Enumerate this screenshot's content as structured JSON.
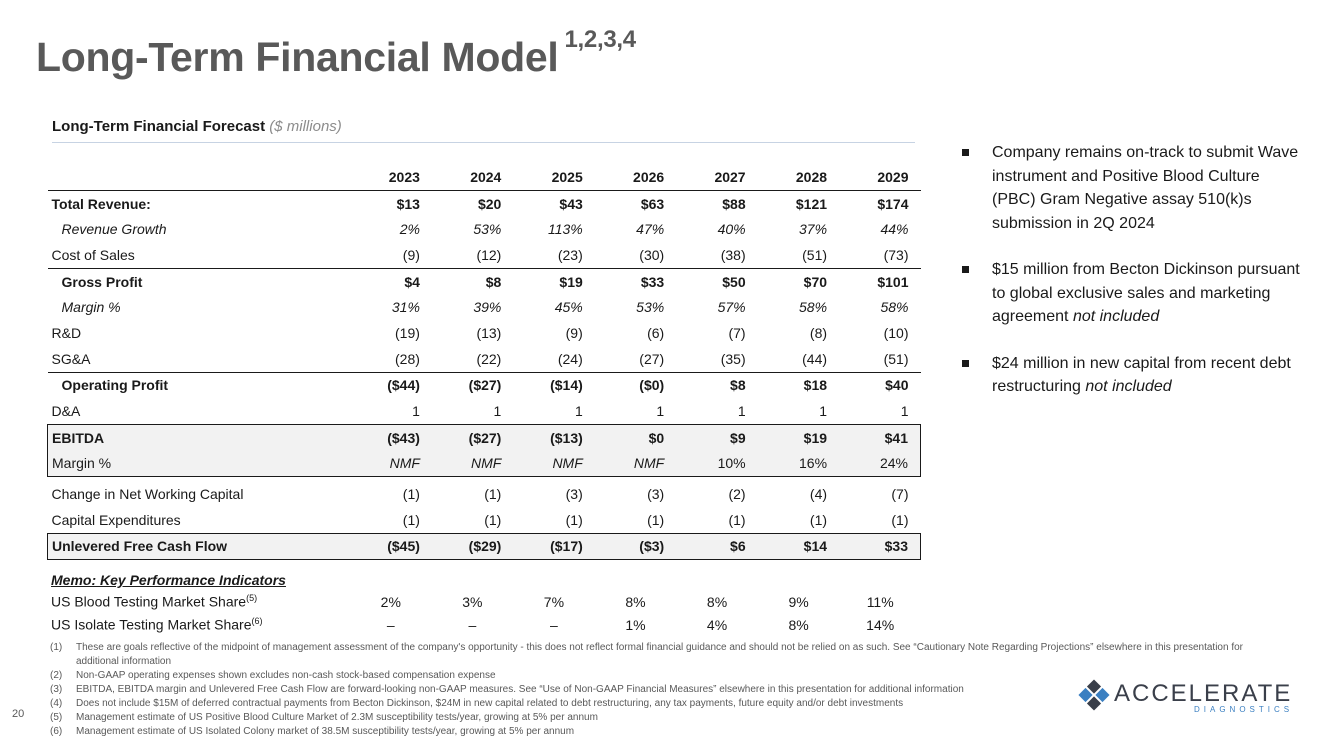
{
  "title": {
    "text": "Long-Term Financial Model",
    "superscript": "1,2,3,4"
  },
  "forecast": {
    "title": "Long-Term Financial Forecast",
    "unit": "($ millions)"
  },
  "years": [
    "2023",
    "2024",
    "2025",
    "2026",
    "2027",
    "2028",
    "2029"
  ],
  "rows": {
    "total_revenue": {
      "label": "Total Revenue:",
      "values": [
        "$13",
        "$20",
        "$43",
        "$63",
        "$88",
        "$121",
        "$174"
      ]
    },
    "revenue_growth": {
      "label": "Revenue Growth",
      "values": [
        "2%",
        "53%",
        "113%",
        "47%",
        "40%",
        "37%",
        "44%"
      ]
    },
    "cost_of_sales": {
      "label": "Cost of Sales",
      "values": [
        "(9)",
        "(12)",
        "(23)",
        "(30)",
        "(38)",
        "(51)",
        "(73)"
      ]
    },
    "gross_profit": {
      "label": "Gross Profit",
      "values": [
        "$4",
        "$8",
        "$19",
        "$33",
        "$50",
        "$70",
        "$101"
      ]
    },
    "gross_margin": {
      "label": "Margin %",
      "values": [
        "31%",
        "39%",
        "45%",
        "53%",
        "57%",
        "58%",
        "58%"
      ]
    },
    "rnd": {
      "label": "R&D",
      "values": [
        "(19)",
        "(13)",
        "(9)",
        "(6)",
        "(7)",
        "(8)",
        "(10)"
      ]
    },
    "sga": {
      "label": "SG&A",
      "values": [
        "(28)",
        "(22)",
        "(24)",
        "(27)",
        "(35)",
        "(44)",
        "(51)"
      ]
    },
    "operating_profit": {
      "label": "Operating Profit",
      "values": [
        "($44)",
        "($27)",
        "($14)",
        "($0)",
        "$8",
        "$18",
        "$40"
      ]
    },
    "da": {
      "label": "D&A",
      "values": [
        "1",
        "1",
        "1",
        "1",
        "1",
        "1",
        "1"
      ]
    },
    "ebitda": {
      "label": "EBITDA",
      "values": [
        "($43)",
        "($27)",
        "($13)",
        "$0",
        "$9",
        "$19",
        "$41"
      ]
    },
    "ebitda_margin": {
      "label": "Margin %",
      "values": [
        "NMF",
        "NMF",
        "NMF",
        "NMF",
        "10%",
        "16%",
        "24%"
      ]
    },
    "nwc": {
      "label": "Change in Net Working Capital",
      "values": [
        "(1)",
        "(1)",
        "(3)",
        "(3)",
        "(2)",
        "(4)",
        "(7)"
      ]
    },
    "capex": {
      "label": "Capital Expenditures",
      "values": [
        "(1)",
        "(1)",
        "(1)",
        "(1)",
        "(1)",
        "(1)",
        "(1)"
      ]
    },
    "ufcf": {
      "label": "Unlevered Free Cash Flow",
      "values": [
        "($45)",
        "($29)",
        "($17)",
        "($3)",
        "$6",
        "$14",
        "$33"
      ]
    }
  },
  "memo": {
    "title": "Memo: Key Performance Indicators",
    "rows": [
      {
        "label": "US Blood Testing Market Share",
        "note": "(5)",
        "values": [
          "2%",
          "3%",
          "7%",
          "8%",
          "8%",
          "9%",
          "11%"
        ]
      },
      {
        "label": "US Isolate Testing Market Share",
        "note": "(6)",
        "values": [
          "–",
          "–",
          "–",
          "1%",
          "4%",
          "8%",
          "14%"
        ]
      }
    ]
  },
  "bullets": [
    {
      "text": "Company remains on-track to submit Wave instrument and Positive Blood Culture (PBC) Gram Negative assay 510(k)s submission in 2Q 2024",
      "italic": ""
    },
    {
      "text": "$15 million from Becton Dickinson pursuant to global exclusive sales and marketing agreement ",
      "italic": "not included"
    },
    {
      "text": "$24 million in new capital from recent debt restructuring ",
      "italic": "not included"
    }
  ],
  "footnotes": [
    {
      "n": "(1)",
      "text": "These are goals reflective of the midpoint of management assessment of the company's opportunity - this does not reflect formal financial guidance and should not be relied on as such. See “Cautionary Note Regarding Projections” elsewhere in this presentation for additional information"
    },
    {
      "n": "(2)",
      "text": "Non-GAAP operating expenses shown excludes non-cash stock-based compensation expense"
    },
    {
      "n": "(3)",
      "text": "EBITDA, EBITDA margin and Unlevered Free Cash Flow are forward-looking non-GAAP measures.  See “Use of Non-GAAP Financial Measures” elsewhere in this presentation for additional information"
    },
    {
      "n": "(4)",
      "text": "Does not include $15M of deferred contractual payments from Becton Dickinson, $24M in new capital related to debt restructuring, any tax payments, future equity and/or debt investments"
    },
    {
      "n": "(5)",
      "text": "Management estimate of US Positive Blood Culture Market of 2.3M susceptibility tests/year, growing at 5% per annum"
    },
    {
      "n": "(6)",
      "text": "Management estimate of US Isolated Colony market of 38.5M susceptibility tests/year, growing at 5% per annum"
    }
  ],
  "page_number": "20",
  "logo": {
    "word": "ACCELERATE",
    "sub": "DIAGNOSTICS"
  },
  "colors": {
    "title": "#595959",
    "rule": "#c7d3e3",
    "logo_blue": "#3a7fc1"
  }
}
